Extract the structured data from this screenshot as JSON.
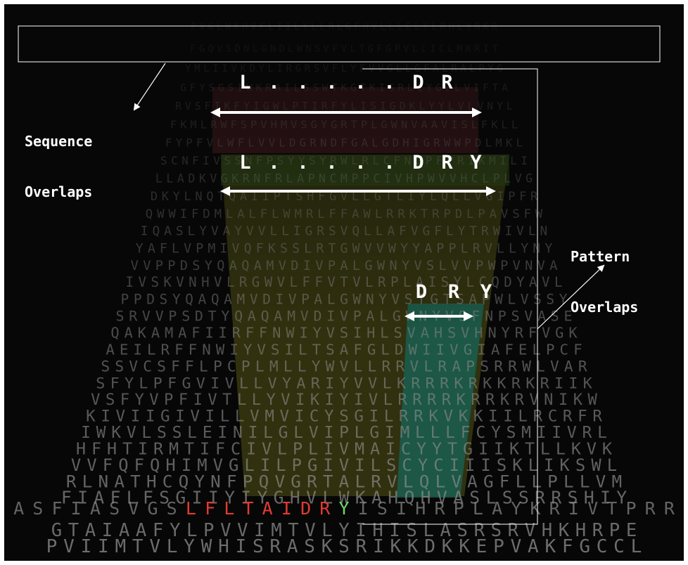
{
  "labels": {
    "sequence_overlaps": [
      "Sequence",
      "Overlaps"
    ],
    "pattern_overlaps": [
      "Pattern",
      "Overlaps"
    ]
  },
  "patterns": [
    {
      "tokens": [
        "L",
        ".",
        ".",
        ".",
        ".",
        ".",
        "D",
        "R"
      ]
    },
    {
      "tokens": [
        "L",
        ".",
        ".",
        ".",
        ".",
        ".",
        "D",
        "R",
        "Y"
      ]
    },
    {
      "tokens": [
        "D",
        "R",
        "Y"
      ]
    }
  ],
  "sequence_rows": [
    "PVGLWKHVFLIILYLLRLGFHVLLLCLYLRHLYRKR",
    "FGQVSDNLGNDLWNSVFVLTGFGPVLLICLMKRIT",
    "YMLIIVKDYLIRGRSVFLYFVVGLLGFALRALPYG",
    "GFYSGSIWKRAILSSWTKGTKIGRLIYGFLVIFTA",
    "RVSFIKFYIGWLPTIRFYLISIGDKLYYLVLVNYL",
    "FKMLRWFSPVHMVSGYGRTPLGWNVAAVISLFKLL",
    "FYPFVLWFLVVLDGRNDFGALGDHIGRWWPDLMKL",
    "SCNFIVSSNFPSYYSYRWLRLCFNGPFPRIKMILI",
    "LLADKVGKRNFRLAPNCMPPCIVHPWVVHCLPLVG",
    "DKYLNQTQAIIPTSHFGVLLGTLIYLQLLVGIPFR",
    "QWWIFDMLALFLWMRLFFAWLRRKTRPDLPAVSFW",
    "IQASLYVAYVVLLIGRSVQLLAFVGFLYTRWIVLN",
    "YAFLVPMIVQFKSSLRTGWVVWYYAPPLRVLLYNY",
    "VVPPDSYQAQAMVDIVPALGWNYVSLVVPWPVNVA",
    "IVSKVNHVLRGWVLFFVTVLRPLAISYLCQDYAVL",
    "PPDSYQAQAMVDIVPALGWNYVSTGTSAPWLVSSY",
    "SRVVPSDTYQAQAMVDIVPALGWNYVSFNPSVASE",
    "QAKAMAFIIRFFNWIYVSIHLSVAHSVHNYRFVGK",
    "AEILRFFNWIYVSILTSAFGLDWIIVGIAFELPCF",
    "SSVCSFFLPCPLMLLYWVLLRRVLRAPSRRWLVAR",
    "SFYLPFGVIVLLVYARIYVVLKRRRKRKKRKRIIK",
    "VSFYVPFIVTLLYVIKIYIVLRRRRKRRKRVNIKW",
    "KIVIIGIVILLVMVICYSGILRRKVKKIILRCRFR",
    "IWKVLSSLEINILGLVIPLGIMLLLFCYSMIIVRL",
    "HFHTIRMTIFCIVLPLIVMAICYYTGIIKTLLKVK",
    "VVFQFQHIMVGLILPGIVILSCYCIIISKLIKSWL",
    "RLNATHCQYNFPQVGRTALRVLQLVAGFLLPLLVM",
    "FIAFLFSGIIYIYGHVLWKAHQHVASLSSRRSHIY",
    "ASFIASVGSLFLTAIDRYISIHRPLAYKRIVTPRR",
    "GTAIAAFYLPVVIMTVLYIHISLASRSRVHKHRPE",
    "PVIIMTVLYWHISRASKSRIKKDKKEPVAKFGCCL"
  ],
  "highlight_sequence": "LFLTAIDRY",
  "colors": {
    "background": "#070707",
    "matrix_text": "#8c8c8c",
    "pink_band": "#5a1f24",
    "green_band": "#263f14",
    "olive_region": "#3e3e12",
    "teal_region": "#1a5e50",
    "highlight_red": "#e23b31",
    "highlight_green": "#6fd36a",
    "annotation": "#ffffff"
  }
}
